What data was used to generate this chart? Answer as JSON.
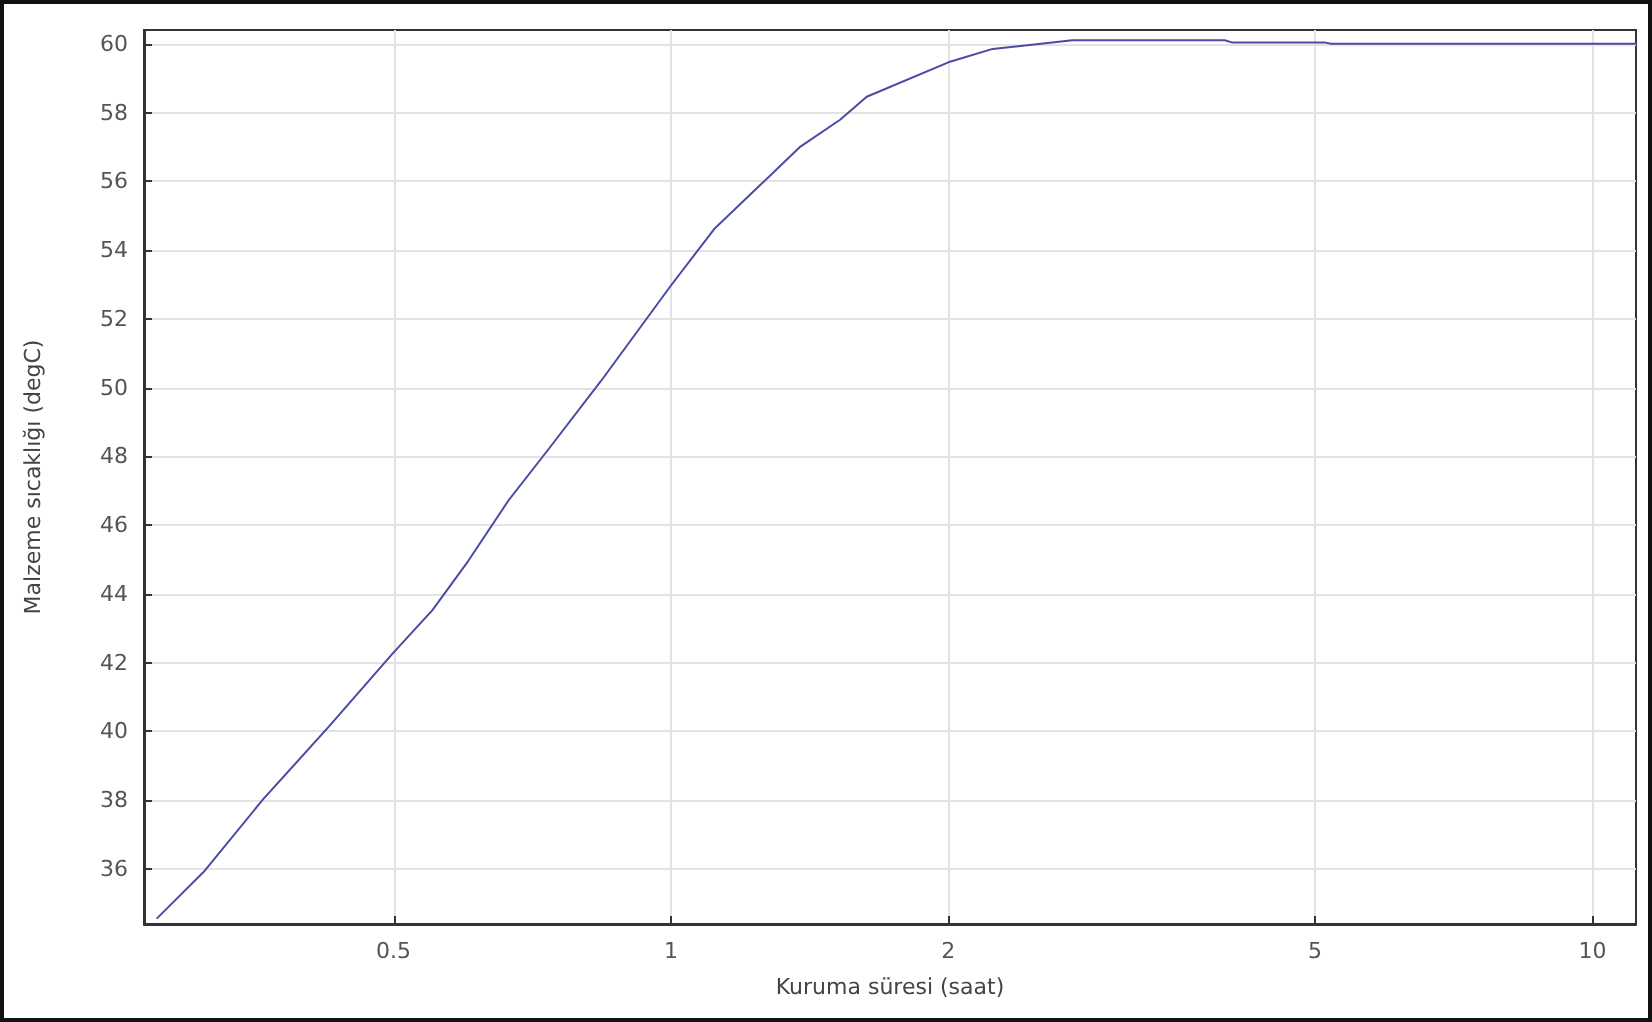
{
  "chart_data": {
    "type": "line",
    "xlabel": "Kuruma süresi (saat)",
    "ylabel": "Malzeme sıcaklığı (degC)",
    "log": "x",
    "grid": true,
    "marker": "none",
    "line_style": "solid",
    "xlim": [
      0.268,
      11.15
    ],
    "xticks": [
      0.5,
      1,
      2,
      5,
      10
    ],
    "ylim": [
      34.4,
      60.4
    ],
    "yticks": [
      36,
      38,
      40,
      42,
      44,
      46,
      48,
      50,
      52,
      54,
      56,
      58,
      60
    ],
    "x": [
      0.277,
      0.311,
      0.361,
      0.426,
      0.499,
      0.551,
      0.603,
      0.666,
      0.736,
      0.84,
      1.0,
      1.114,
      1.382,
      1.526,
      1.631,
      2.0,
      2.234,
      2.727,
      3.99,
      4.06,
      5.12,
      5.2,
      11.15
    ],
    "series": [
      {
        "color": "#4a4aa6",
        "values": [
          34.57,
          35.91,
          38.03,
          40.16,
          42.27,
          43.53,
          44.97,
          46.71,
          48.2,
          50.2,
          52.97,
          54.61,
          57.01,
          57.79,
          58.46,
          59.46,
          59.85,
          60.1,
          60.1,
          60.04,
          60.04,
          60.0,
          60.0
        ]
      }
    ]
  }
}
